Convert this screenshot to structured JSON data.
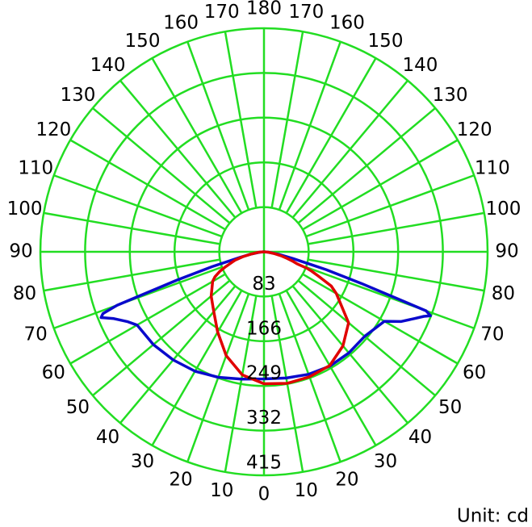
{
  "chart_data": {
    "type": "polar",
    "unit_label": "Unit: cd",
    "rlim": [
      0,
      415
    ],
    "rticks": [
      83,
      166,
      249,
      332,
      415
    ],
    "angle_ticks": [
      0,
      10,
      20,
      30,
      40,
      50,
      60,
      70,
      80,
      90,
      100,
      110,
      120,
      130,
      140,
      150,
      160,
      170,
      180
    ],
    "grid": true,
    "grid_color": "#22dd22",
    "x": [
      -90,
      -85,
      -80,
      -77,
      -74,
      -72,
      -70,
      -69,
      -68,
      -66,
      -63,
      -60,
      -50,
      -40,
      -30,
      -20,
      -10,
      0,
      10,
      20,
      30,
      40,
      50,
      60,
      63,
      66,
      68,
      69,
      70,
      72,
      74,
      77,
      80,
      85,
      90
    ],
    "series": [
      {
        "color": "#0a0acc",
        "values": [
          0,
          8,
          25,
          45,
          100,
          170,
          290,
          320,
          326,
          305,
          285,
          272,
          268,
          262,
          256,
          248,
          240,
          236,
          238,
          242,
          245,
          245,
          244,
          258,
          285,
          305,
          320,
          331,
          320,
          190,
          120,
          55,
          28,
          8,
          0
        ]
      },
      {
        "color": "#e00000",
        "values": [
          0,
          10,
          25,
          40,
          55,
          62,
          70,
          75,
          80,
          90,
          102,
          110,
          128,
          145,
          172,
          205,
          232,
          245,
          248,
          247,
          244,
          228,
          205,
          155,
          140,
          110,
          95,
          85,
          65,
          55,
          45,
          32,
          20,
          8,
          0
        ]
      }
    ]
  }
}
